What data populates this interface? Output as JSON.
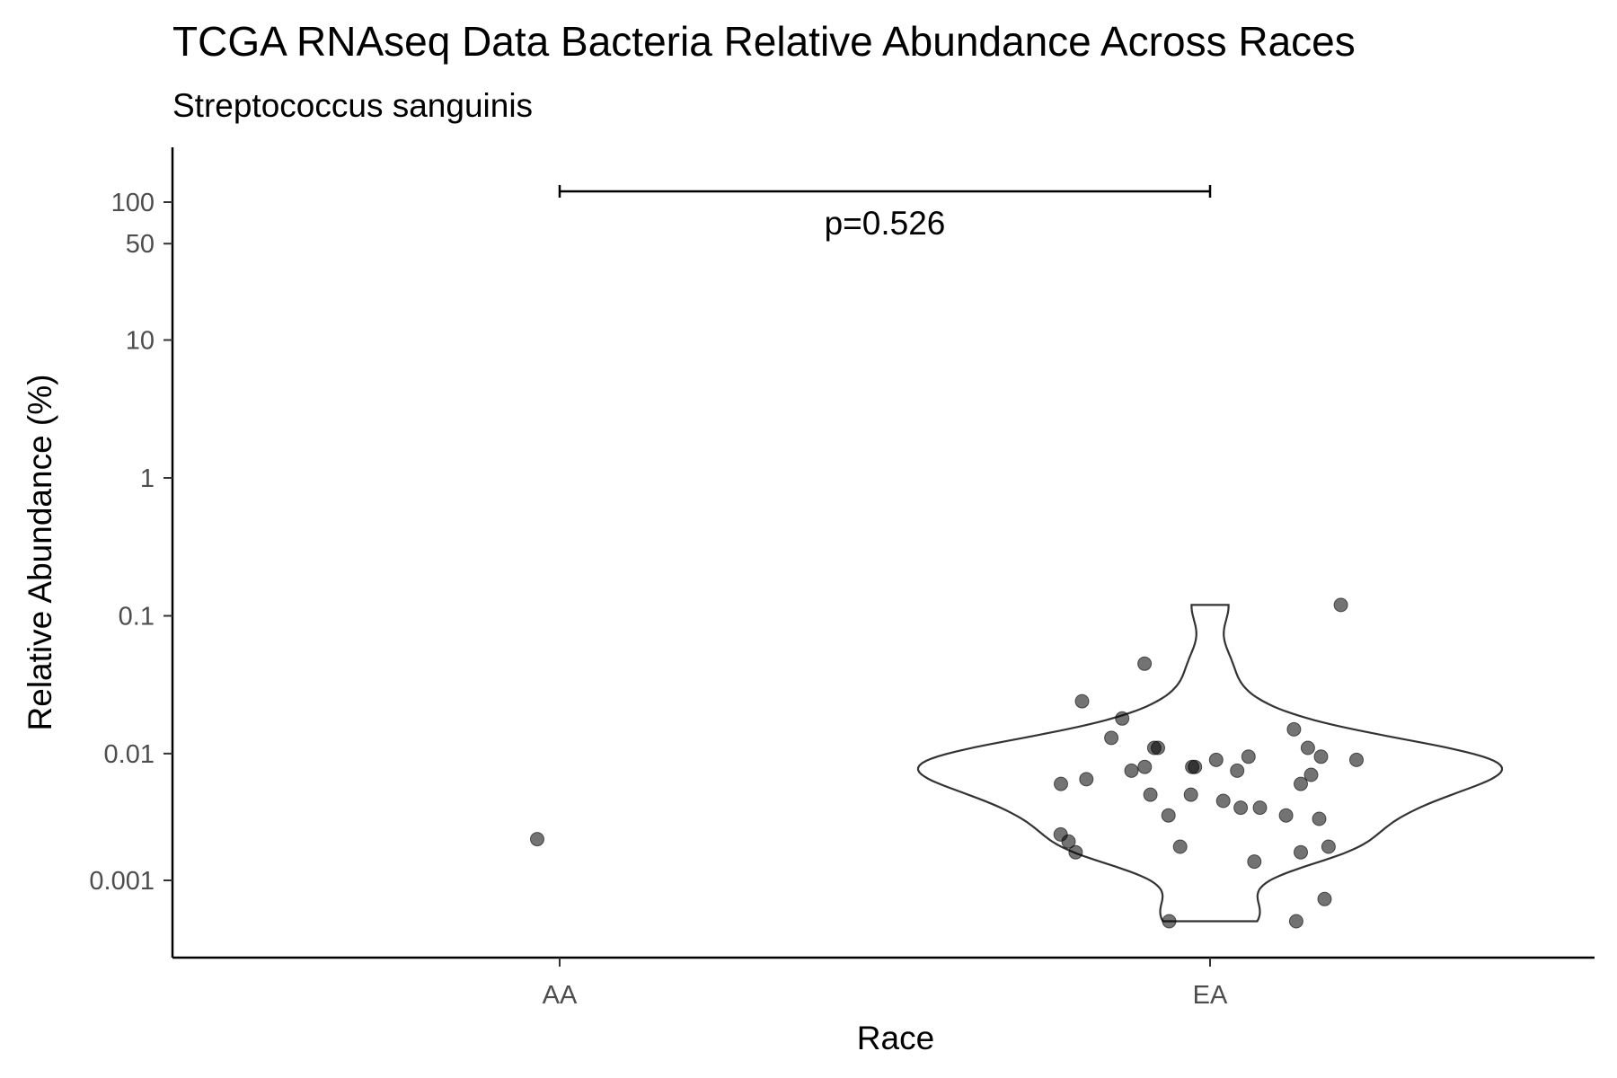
{
  "chart_data": {
    "type": "violin",
    "title": "TCGA RNAseq Data Bacteria Relative Abundance Across Races",
    "subtitle": "Streptococcus sanguinis",
    "xlabel": "Race",
    "ylabel": "Relative Abundance (%)",
    "y_scale": "pseudo-log",
    "y_ticks": [
      0.001,
      0.01,
      0.1,
      1,
      10,
      50,
      100
    ],
    "y_tick_labels": [
      "0.001",
      "0.01",
      "0.1",
      "1",
      "10",
      "50",
      "100"
    ],
    "categories": [
      "AA",
      "EA"
    ],
    "grid": false,
    "legend": "none",
    "comparison": {
      "groups": [
        "AA",
        "EA"
      ],
      "label": "p=0.526"
    },
    "points": {
      "AA": [
        0.0023
      ],
      "EA": [
        0.12,
        0.045,
        0.024,
        0.018,
        0.015,
        0.013,
        0.011,
        0.011,
        0.011,
        0.0095,
        0.0095,
        0.009,
        0.009,
        0.008,
        0.008,
        0.008,
        0.0075,
        0.0075,
        0.007,
        0.0065,
        0.006,
        0.006,
        0.005,
        0.005,
        0.0045,
        0.004,
        0.004,
        0.0035,
        0.0035,
        0.0033,
        0.0025,
        0.0022,
        0.002,
        0.002,
        0.0018,
        0.0018,
        0.0015,
        0.0006,
        0.0002,
        0.0002
      ]
    }
  }
}
